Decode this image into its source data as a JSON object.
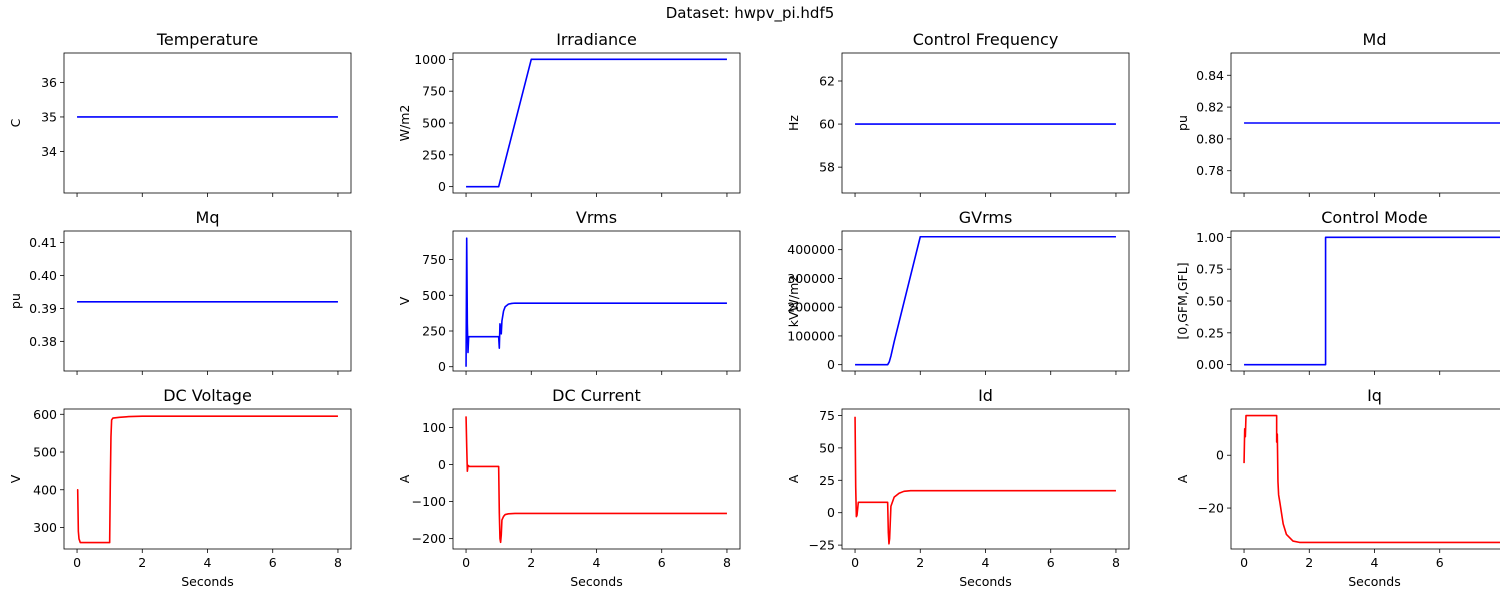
{
  "figure": {
    "suptitle": "Dataset: hwpv_pi.hdf5",
    "shared_x": {
      "label": "Seconds",
      "ticks": [
        0,
        2,
        4,
        6,
        8
      ],
      "xlim": [
        -0.4,
        8.4
      ]
    }
  },
  "chart_data": [
    {
      "type": "line",
      "title": "Temperature",
      "ylabel": "C",
      "ylim": [
        32.8,
        36.85
      ],
      "yticks": [
        34,
        35,
        36
      ],
      "color": "#0000ff",
      "series": [
        {
          "x": [
            0,
            8
          ],
          "y": [
            35,
            35
          ]
        }
      ]
    },
    {
      "type": "line",
      "title": "Irradiance",
      "ylabel": "W/m2",
      "ylim": [
        -50,
        1050
      ],
      "yticks": [
        0,
        250,
        500,
        750,
        1000
      ],
      "color": "#0000ff",
      "series": [
        {
          "x": [
            0,
            1,
            2,
            8
          ],
          "y": [
            0,
            0,
            1000,
            1000
          ]
        }
      ]
    },
    {
      "type": "line",
      "title": "Control Frequency",
      "ylabel": "Hz",
      "ylim": [
        56.8,
        63.3
      ],
      "yticks": [
        58,
        60,
        62
      ],
      "color": "#0000ff",
      "series": [
        {
          "x": [
            0,
            8
          ],
          "y": [
            60,
            60
          ]
        }
      ]
    },
    {
      "type": "line",
      "title": "Md",
      "ylabel": "pu",
      "ylim": [
        0.766,
        0.854
      ],
      "yticks": [
        0.78,
        0.8,
        0.82,
        0.84
      ],
      "tick_decimals": 2,
      "color": "#0000ff",
      "series": [
        {
          "x": [
            0,
            8
          ],
          "y": [
            0.81,
            0.81
          ]
        }
      ]
    },
    {
      "type": "line",
      "title": "Mq",
      "ylabel": "pu",
      "ylim": [
        0.371,
        0.4135
      ],
      "yticks": [
        0.38,
        0.39,
        0.4,
        0.41
      ],
      "tick_decimals": 2,
      "color": "#0000ff",
      "series": [
        {
          "x": [
            0,
            8
          ],
          "y": [
            0.392,
            0.392
          ]
        }
      ]
    },
    {
      "type": "line",
      "title": "Vrms",
      "ylabel": "V",
      "ylim": [
        -30,
        950
      ],
      "yticks": [
        0,
        250,
        500,
        750
      ],
      "color": "#0000ff",
      "series": [
        {
          "x": [
            0,
            0.02,
            0.04,
            0.06,
            0.08,
            0.1,
            1.0,
            1.02,
            1.04,
            1.06,
            1.08,
            1.1,
            1.15,
            1.2,
            1.3,
            1.4,
            1.5,
            1.7,
            2,
            8
          ],
          "y": [
            0,
            900,
            300,
            100,
            210,
            210,
            210,
            130,
            300,
            250,
            230,
            320,
            390,
            420,
            438,
            443,
            445,
            445,
            445,
            445
          ]
        }
      ]
    },
    {
      "type": "line",
      "title": "GVrms",
      "ylabel": "kVW/m2",
      "ylim": [
        -22000,
        465000
      ],
      "yticks": [
        0,
        100000,
        200000,
        300000,
        400000
      ],
      "color": "#0000ff",
      "series": [
        {
          "x": [
            0,
            1,
            1.05,
            1.1,
            1.2,
            2,
            8
          ],
          "y": [
            0,
            0,
            10000,
            30000,
            80000,
            445000,
            445000
          ]
        }
      ]
    },
    {
      "type": "line",
      "title": "Control Mode",
      "ylabel": "[0,GFM,GFL]",
      "ylim": [
        -0.05,
        1.05
      ],
      "yticks": [
        0.0,
        0.25,
        0.5,
        0.75,
        1.0
      ],
      "tick_decimals": 2,
      "color": "#0000ff",
      "series": [
        {
          "x": [
            0,
            2.5,
            2.5,
            8
          ],
          "y": [
            0,
            0,
            1,
            1
          ]
        }
      ]
    },
    {
      "type": "line",
      "title": "DC Voltage",
      "ylabel": "V",
      "ylim": [
        243,
        614
      ],
      "yticks": [
        300,
        400,
        500,
        600
      ],
      "color": "#ff0000",
      "series": [
        {
          "x": [
            0,
            0.02,
            0.04,
            0.06,
            0.1,
            1.0,
            1.02,
            1.04,
            1.06,
            1.1,
            1.3,
            1.6,
            2.0,
            8
          ],
          "y": [
            400,
            400,
            290,
            270,
            260,
            260,
            420,
            540,
            585,
            590,
            592,
            594,
            595,
            595
          ]
        }
      ]
    },
    {
      "type": "line",
      "title": "DC Current",
      "ylabel": "A",
      "ylim": [
        -228,
        150
      ],
      "yticks": [
        -200,
        -100,
        0,
        100
      ],
      "color": "#ff0000",
      "series": [
        {
          "x": [
            0,
            0.02,
            0.04,
            0.06,
            0.1,
            1.0,
            1.02,
            1.04,
            1.06,
            1.08,
            1.1,
            1.15,
            1.2,
            1.3,
            1.5,
            2,
            8
          ],
          "y": [
            130,
            50,
            -18,
            -2,
            -5,
            -5,
            -130,
            -200,
            -210,
            -190,
            -150,
            -140,
            -135,
            -133,
            -132,
            -132,
            -132
          ]
        }
      ]
    },
    {
      "type": "line",
      "title": "Id",
      "ylabel": "A",
      "ylim": [
        -28,
        80
      ],
      "yticks": [
        -25,
        0,
        25,
        50,
        75
      ],
      "color": "#ff0000",
      "series": [
        {
          "x": [
            0,
            0.02,
            0.04,
            0.06,
            0.1,
            1.0,
            1.02,
            1.04,
            1.06,
            1.1,
            1.2,
            1.35,
            1.5,
            1.7,
            2,
            8
          ],
          "y": [
            74,
            20,
            -3,
            -2,
            8,
            8,
            -15,
            -24,
            -20,
            5,
            12,
            15,
            16.5,
            17,
            17,
            17
          ]
        }
      ]
    },
    {
      "type": "line",
      "title": "Iq",
      "ylabel": "A",
      "ylim": [
        -35.5,
        17.5
      ],
      "yticks": [
        -20,
        0
      ],
      "color": "#ff0000",
      "series": [
        {
          "x": [
            0,
            0.02,
            0.04,
            0.06,
            0.1,
            1.0,
            1.0,
            1.02,
            1.04,
            1.06,
            1.1,
            1.15,
            1.2,
            1.3,
            1.5,
            1.7,
            2,
            8
          ],
          "y": [
            -3,
            10,
            7,
            15,
            15,
            15,
            5,
            8,
            -10,
            -15,
            -18,
            -22,
            -26,
            -30,
            -32.5,
            -33,
            -33,
            -33
          ]
        }
      ]
    }
  ]
}
